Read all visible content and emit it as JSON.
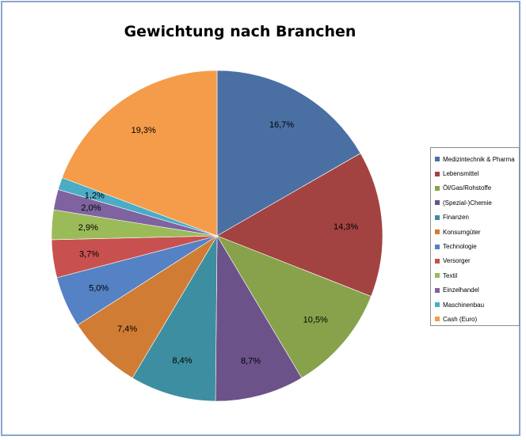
{
  "chart_data": {
    "type": "pie",
    "title": "Gewichtung nach Branchen",
    "legend_position": "right",
    "slices": [
      {
        "name": "Medizintechnik & Pharma",
        "value": 16.7,
        "label": "16,7%",
        "color": "#4a6fa3"
      },
      {
        "name": "Lebensmittel",
        "value": 14.3,
        "label": "14,3%",
        "color": "#a34341"
      },
      {
        "name": "Öl/Gas/Rohstoffe",
        "value": 10.5,
        "label": "10,5%",
        "color": "#87a24a"
      },
      {
        "name": "(Spezial-)Chemie",
        "value": 8.7,
        "label": "8,7%",
        "color": "#6b5389"
      },
      {
        "name": "Finanzen",
        "value": 8.4,
        "label": "8,4%",
        "color": "#3d8ea0"
      },
      {
        "name": "Konsumgüter",
        "value": 7.4,
        "label": "7,4%",
        "color": "#d17c35"
      },
      {
        "name": "Technologie",
        "value": 5.0,
        "label": "5,0%",
        "color": "#5582c4"
      },
      {
        "name": "Versorger",
        "value": 3.7,
        "label": "3,7%",
        "color": "#c85150"
      },
      {
        "name": "Textil",
        "value": 2.9,
        "label": "2,9%",
        "color": "#9bbb59"
      },
      {
        "name": "Einzelhandel",
        "value": 2.0,
        "label": "2,0%",
        "color": "#7e63a0"
      },
      {
        "name": "Maschinenbau",
        "value": 1.2,
        "label": "1,2%",
        "color": "#4bacc6"
      },
      {
        "name": "Cash (Euro)",
        "value": 19.3,
        "label": "19,3%",
        "color": "#f59c4a"
      }
    ]
  }
}
